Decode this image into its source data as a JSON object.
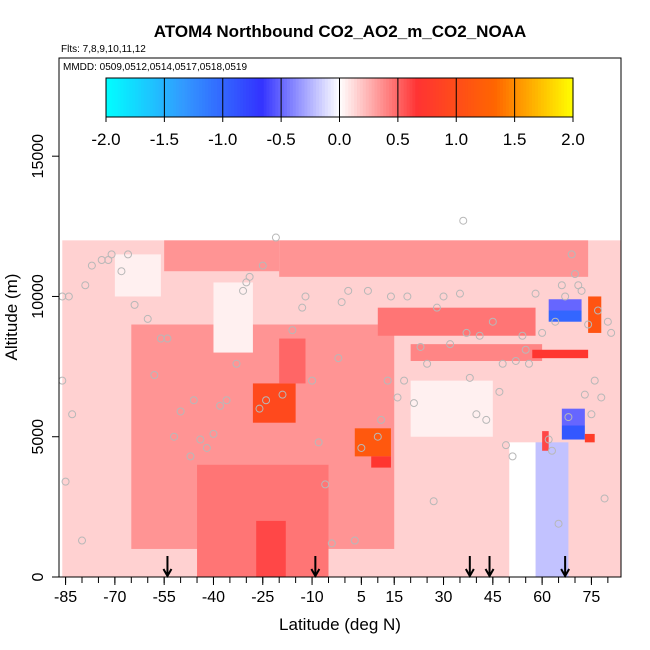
{
  "chart_data": {
    "type": "heatmap",
    "title": "ATOM4 Northbound CO2_AO2_m_CO2_NOAA",
    "subtitle_flights": "Flts: 7,8,9,10,11,12",
    "subtitle_dates": "MMDD: 0509,0512,0514,0517,0518,0519",
    "xlabel": "Latitude (deg N)",
    "ylabel": "Altitude (m)",
    "xlim": [
      -87,
      84
    ],
    "ylim": [
      0,
      18500
    ],
    "x_ticks": [
      -85,
      -70,
      -55,
      -40,
      -25,
      -10,
      5,
      15,
      30,
      45,
      60,
      75
    ],
    "y_ticks": [
      0,
      5000,
      10000,
      15000
    ],
    "colorbar": {
      "min": -2.0,
      "max": 2.0,
      "ticks": [
        "-2.0",
        "-1.5",
        "-1.0",
        "-0.5",
        "0.0",
        "0.5",
        "1.0",
        "1.5",
        "2.0"
      ],
      "colors": [
        "#00ffff",
        "#3399ff",
        "#3333ff",
        "#ffffff",
        "#ff3333",
        "#ff6600",
        "#ffff00"
      ]
    },
    "arrows_latitude": [
      -54,
      -9,
      38,
      44,
      67
    ],
    "cells": [
      {
        "lat0": -86,
        "lat1": 84,
        "alt0": 0,
        "alt1": 12000,
        "value": 0.15
      },
      {
        "lat0": -65,
        "lat1": 15,
        "alt0": 1000,
        "alt1": 9000,
        "value": 0.35
      },
      {
        "lat0": -45,
        "lat1": -5,
        "alt0": 0,
        "alt1": 4000,
        "value": 0.45
      },
      {
        "lat0": -27,
        "lat1": -18,
        "alt0": 0,
        "alt1": 2000,
        "value": 0.6
      },
      {
        "lat0": -28,
        "lat1": -15,
        "alt0": 5500,
        "alt1": 6900,
        "value": 0.95
      },
      {
        "lat0": -20,
        "lat1": -12,
        "alt0": 6900,
        "alt1": 8500,
        "value": 0.5
      },
      {
        "lat0": 3,
        "lat1": 14,
        "alt0": 4300,
        "alt1": 5300,
        "value": 1.15
      },
      {
        "lat0": 8,
        "lat1": 14,
        "alt0": 3900,
        "alt1": 4300,
        "value": 0.7
      },
      {
        "lat0": -20,
        "lat1": 74,
        "alt0": 10700,
        "alt1": 12000,
        "value": 0.35
      },
      {
        "lat0": -55,
        "lat1": -20,
        "alt0": 10900,
        "alt1": 12000,
        "value": 0.35
      },
      {
        "lat0": 10,
        "lat1": 58,
        "alt0": 8600,
        "alt1": 9600,
        "value": 0.45
      },
      {
        "lat0": 20,
        "lat1": 60,
        "alt0": 7700,
        "alt1": 8300,
        "value": 0.4
      },
      {
        "lat0": 57,
        "lat1": 74,
        "alt0": 7800,
        "alt1": 8100,
        "value": 0.7
      },
      {
        "lat0": 62,
        "lat1": 72,
        "alt0": 9100,
        "alt1": 9500,
        "value": -1.0
      },
      {
        "lat0": 62,
        "lat1": 72,
        "alt0": 9500,
        "alt1": 9900,
        "value": -0.5
      },
      {
        "lat0": 74,
        "lat1": 78,
        "alt0": 8700,
        "alt1": 10000,
        "value": 1.1
      },
      {
        "lat0": 66,
        "lat1": 73,
        "alt0": 4900,
        "alt1": 5400,
        "value": -0.9
      },
      {
        "lat0": 66,
        "lat1": 73,
        "alt0": 5400,
        "alt1": 6000,
        "value": -0.5
      },
      {
        "lat0": 73,
        "lat1": 76,
        "alt0": 4800,
        "alt1": 5100,
        "value": 0.8
      },
      {
        "lat0": 58,
        "lat1": 68,
        "alt0": 0,
        "alt1": 4800,
        "value": -0.2
      },
      {
        "lat0": 50,
        "lat1": 58,
        "alt0": 0,
        "alt1": 4800,
        "value": 0.0
      },
      {
        "lat0": 60,
        "lat1": 62,
        "alt0": 4500,
        "alt1": 5200,
        "value": 0.6
      },
      {
        "lat0": -40,
        "lat1": -28,
        "alt0": 8000,
        "alt1": 10500,
        "value": 0.05
      },
      {
        "lat0": -70,
        "lat1": -56,
        "alt0": 10000,
        "alt1": 11500,
        "value": 0.05
      },
      {
        "lat0": 20,
        "lat1": 45,
        "alt0": 5000,
        "alt1": 7000,
        "value": 0.05
      }
    ],
    "points": [
      [
        -86,
        10000
      ],
      [
        -84,
        10000
      ],
      [
        -85,
        3400
      ],
      [
        -86,
        7000
      ],
      [
        -83,
        5800
      ],
      [
        -80,
        1300
      ],
      [
        -79,
        10400
      ],
      [
        -77,
        11100
      ],
      [
        -74,
        11300
      ],
      [
        -72,
        11300
      ],
      [
        -71,
        11500
      ],
      [
        -68,
        10900
      ],
      [
        -66,
        11500
      ],
      [
        -64,
        9700
      ],
      [
        -60,
        9200
      ],
      [
        -58,
        7200
      ],
      [
        -56,
        8500
      ],
      [
        -54,
        8500
      ],
      [
        -52,
        5000
      ],
      [
        -50,
        5900
      ],
      [
        -47,
        4300
      ],
      [
        -46,
        6300
      ],
      [
        -44,
        4900
      ],
      [
        -42,
        4600
      ],
      [
        -40,
        5100
      ],
      [
        -38,
        6100
      ],
      [
        -36,
        6300
      ],
      [
        -33,
        7600
      ],
      [
        -31,
        10200
      ],
      [
        -30,
        10500
      ],
      [
        -29,
        10700
      ],
      [
        -26,
        6000
      ],
      [
        -25,
        11100
      ],
      [
        -24,
        6300
      ],
      [
        -21,
        12100
      ],
      [
        -19,
        6500
      ],
      [
        -16,
        8800
      ],
      [
        -13,
        9600
      ],
      [
        -12,
        10000
      ],
      [
        -10,
        7000
      ],
      [
        -8,
        4800
      ],
      [
        -6,
        3300
      ],
      [
        -4,
        1200
      ],
      [
        -2,
        7800
      ],
      [
        -1,
        9800
      ],
      [
        1,
        10200
      ],
      [
        3,
        1300
      ],
      [
        5,
        4600
      ],
      [
        7,
        10200
      ],
      [
        10,
        5000
      ],
      [
        11,
        5600
      ],
      [
        13,
        7000
      ],
      [
        14,
        10000
      ],
      [
        16,
        6400
      ],
      [
        18,
        7000
      ],
      [
        19,
        10000
      ],
      [
        21,
        6200
      ],
      [
        23,
        8200
      ],
      [
        25,
        7600
      ],
      [
        27,
        2700
      ],
      [
        28,
        9600
      ],
      [
        30,
        10000
      ],
      [
        32,
        8300
      ],
      [
        35,
        10100
      ],
      [
        36,
        12700
      ],
      [
        37,
        8700
      ],
      [
        38,
        7100
      ],
      [
        40,
        5800
      ],
      [
        41,
        8600
      ],
      [
        43,
        5600
      ],
      [
        45,
        9100
      ],
      [
        47,
        6600
      ],
      [
        48,
        7600
      ],
      [
        49,
        4700
      ],
      [
        51,
        4300
      ],
      [
        52,
        7700
      ],
      [
        54,
        8600
      ],
      [
        55,
        8100
      ],
      [
        56,
        7600
      ],
      [
        58,
        10100
      ],
      [
        60,
        8700
      ],
      [
        62,
        4900
      ],
      [
        63,
        4500
      ],
      [
        64,
        9100
      ],
      [
        65,
        1900
      ],
      [
        66,
        10400
      ],
      [
        67,
        10000
      ],
      [
        68,
        5700
      ],
      [
        69,
        11500
      ],
      [
        70,
        10800
      ],
      [
        71,
        10400
      ],
      [
        72,
        10200
      ],
      [
        73,
        6500
      ],
      [
        74,
        9000
      ],
      [
        75,
        5800
      ],
      [
        76,
        7000
      ],
      [
        77,
        9500
      ],
      [
        78,
        6400
      ],
      [
        79,
        2800
      ],
      [
        80,
        9100
      ],
      [
        81,
        8700
      ]
    ]
  }
}
